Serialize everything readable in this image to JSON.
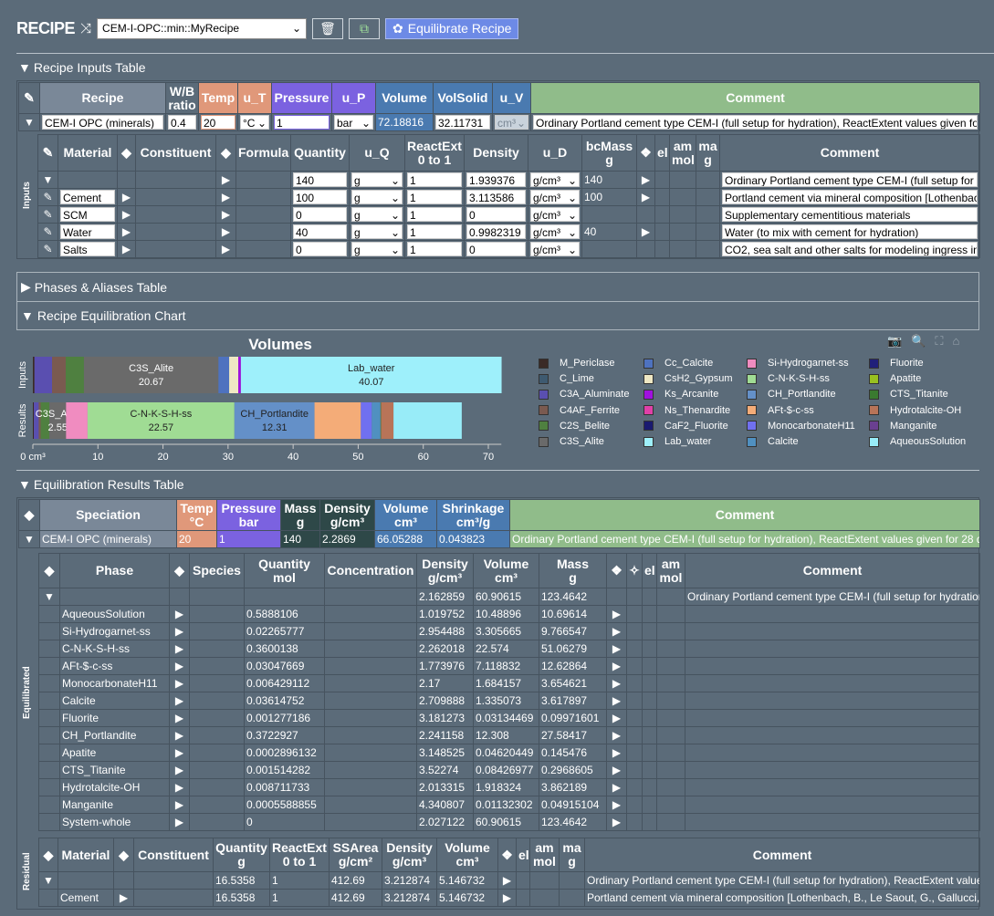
{
  "header": {
    "title": "RECIPE",
    "recipe_select": "CEM-I-OPC::min::MyRecipe",
    "equilibrate_label": "Equilibrate Recipe"
  },
  "sections": {
    "inputs": "Recipe Inputs Table",
    "phases": "Phases & Aliases Table",
    "chart": "Recipe Equilibration Chart",
    "results": "Equilibration Results Table"
  },
  "recipe_table": {
    "headers": [
      "pencil",
      "Recipe",
      "W/B\nratio",
      "Temp",
      "u_T",
      "Pressure",
      "u_P",
      "Volume",
      "VolSolid",
      "u_V",
      "Comment"
    ],
    "rows": [
      [
        "caret-down",
        "CEM-I OPC (minerals)",
        "0.4",
        "20",
        "°C",
        "1",
        "bar",
        "72.18816",
        "32.11731",
        "cm³",
        "Ordinary Portland cement type CEM-I (full setup for hydration), ReactExtent values given for"
      ]
    ]
  },
  "inputs_table": {
    "side_label": "Inputs",
    "headers": [
      "pencil",
      "Material",
      "◆",
      "Constituent",
      "◆",
      "Formula",
      "Quantity",
      "u_Q",
      "ReactExt\n0 to 1",
      "Density",
      "u_D",
      "bcMass\ng",
      "❖",
      "el",
      "am\nmol",
      "ma\ng",
      "Comment"
    ],
    "rows": [
      [
        "caret-down",
        "",
        "",
        "",
        "caret-right",
        "",
        "140",
        "g",
        "1",
        "1.939376",
        "g/cm³",
        "140",
        "caret-right",
        "",
        "",
        "",
        "Ordinary Portland cement type CEM-I (full setup for hydration)"
      ],
      [
        "pencil",
        "Cement",
        "caret-right",
        "",
        "caret-right",
        "",
        "100",
        "g",
        "1",
        "3.113586",
        "g/cm³",
        "100",
        "caret-right",
        "",
        "",
        "",
        "Portland cement via mineral composition [Lothenbach"
      ],
      [
        "pencil",
        "SCM",
        "caret-right",
        "",
        "caret-right",
        "",
        "0",
        "g",
        "1",
        "0",
        "g/cm³",
        "",
        "",
        "",
        "",
        "",
        "Supplementary cementitious materials"
      ],
      [
        "pencil",
        "Water",
        "caret-right",
        "",
        "caret-right",
        "",
        "40",
        "g",
        "1",
        "0.9982319",
        "g/cm³",
        "40",
        "caret-right",
        "",
        "",
        "",
        "Water (to mix with cement for hydration)"
      ],
      [
        "pencil",
        "Salts",
        "caret-right",
        "",
        "caret-right",
        "",
        "0",
        "g",
        "1",
        "0",
        "g/cm³",
        "",
        "",
        "",
        "",
        "",
        "CO2, sea salt and other salts for modeling ingress in"
      ]
    ]
  },
  "chart_data": {
    "type": "bar",
    "orientation": "horizontal",
    "stacked": true,
    "title": "Volumes",
    "xunit": "cm³",
    "xlim": [
      0,
      72
    ],
    "xticks": [
      0,
      10,
      20,
      30,
      40,
      50,
      60,
      70
    ],
    "xtick_labels": [
      "0 cm³",
      "10",
      "20",
      "30",
      "40",
      "50",
      "60",
      "70"
    ],
    "categories": [
      "Inputs",
      "Results"
    ],
    "legend_placement": "right",
    "bars": [
      {
        "category": "Inputs",
        "segments": [
          [
            "M_Periclase",
            0.25
          ],
          [
            "C3A_Aluminate",
            2.7
          ],
          [
            "C4AF_Ferrite",
            2.1
          ],
          [
            "C2S_Belite",
            2.8
          ],
          [
            "C3S_Alite",
            20.67
          ],
          [
            "Cc_Calcite",
            1.65
          ],
          [
            "CsH2_Gypsum",
            1.4
          ],
          [
            "Ks_Arcanite",
            0.4
          ],
          [
            "Lab_water",
            40.07
          ]
        ]
      },
      {
        "category": "Results",
        "segments": [
          [
            "M_Periclase",
            0.15
          ],
          [
            "C3A_Aluminate",
            0.75
          ],
          [
            "C4AF_Ferrite",
            0.3
          ],
          [
            "C2S_Belite",
            1.35
          ],
          [
            "C3S_Alite",
            2.55
          ],
          [
            "Si-Hydrogarnet-ss",
            3.305665
          ],
          [
            "C-N-K-S-H-ss",
            22.57
          ],
          [
            "CH_Portlandite",
            12.31
          ],
          [
            "AFt-$-c-ss",
            7.118832
          ],
          [
            "MonocarbonateH11",
            1.684157
          ],
          [
            "Calcite",
            1.335073
          ],
          [
            "CTS_Titanite",
            0.08426977
          ],
          [
            "Hydrotalcite-OH",
            1.918324
          ],
          [
            "AqueousSolution",
            10.48896
          ]
        ]
      }
    ],
    "labeled_segments": [
      "C3S_Alite",
      "Lab_water",
      "C-N-K-S-H-ss",
      "CH_Portlandite"
    ],
    "legend": [
      [
        "M_Periclase",
        "#3a2a26"
      ],
      [
        "C_Lime",
        "#3e5a70"
      ],
      [
        "C3A_Aluminate",
        "#5a4fb0"
      ],
      [
        "C4AF_Ferrite",
        "#7a5a50"
      ],
      [
        "C2S_Belite",
        "#4f8040"
      ],
      [
        "C3S_Alite",
        "#6a6a6a"
      ],
      [
        "Cc_Calcite",
        "#4e72bf"
      ],
      [
        "CsH2_Gypsum",
        "#efe8c4"
      ],
      [
        "Ks_Arcanite",
        "#a010e0"
      ],
      [
        "Ns_Thenardite",
        "#e040a8"
      ],
      [
        "CaF2_Fluorite",
        "#1a1a70"
      ],
      [
        "Lab_water",
        "#9ef0fb"
      ],
      [
        "Si-Hydrogarnet-ss",
        "#f08cc0"
      ],
      [
        "C-N-K-S-H-ss",
        "#a0dc94"
      ],
      [
        "CH_Portlandite",
        "#6490c8"
      ],
      [
        "AFt-$-c-ss",
        "#f4ac78"
      ],
      [
        "MonocarbonateH11",
        "#7070f0"
      ],
      [
        "Calcite",
        "#5090c0"
      ],
      [
        "Fluorite",
        "#20207a"
      ],
      [
        "Apatite",
        "#98c020"
      ],
      [
        "CTS_Titanite",
        "#3a7a30"
      ],
      [
        "Hydrotalcite-OH",
        "#b87458"
      ],
      [
        "Manganite",
        "#6a4090"
      ],
      [
        "AqueousSolution",
        "#98ecf8"
      ]
    ]
  },
  "speciation_table": {
    "headers": [
      "◆",
      "Speciation",
      "Temp\n°C",
      "Pressure\nbar",
      "Mass\ng",
      "Density\ng/cm³",
      "Volume\ncm³",
      "Shrinkage\ncm³/g",
      "Comment"
    ],
    "rows": [
      [
        "caret-down",
        "CEM-I OPC (minerals)",
        "20",
        "1",
        "140",
        "2.2869",
        "66.05288",
        "0.043823",
        "Ordinary Portland cement type CEM-I (full setup for hydration), ReactExtent values given for 28 d"
      ]
    ]
  },
  "equilibrated_table": {
    "side_label": "Equilibrated",
    "headers": [
      "◆",
      "Phase",
      "◆",
      "Species",
      "Quantity\nmol",
      "Concentration",
      "Density\ng/cm³",
      "Volume\ncm³",
      "Mass\ng",
      "❖",
      "✧",
      "el",
      "am\nmol",
      "Comment"
    ],
    "rows": [
      [
        "caret-down",
        "",
        "",
        "",
        "",
        "",
        "2.162859",
        "60.90615",
        "123.4642",
        "",
        "",
        "",
        "",
        "Ordinary Portland cement type CEM-I (full setup for hydration)"
      ],
      [
        "",
        "AqueousSolution",
        "caret-right",
        "",
        "0.5888106",
        "",
        "1.019752",
        "10.48896",
        "10.69614",
        "caret-right",
        "",
        "",
        "",
        ""
      ],
      [
        "",
        "Si-Hydrogarnet-ss",
        "caret-right",
        "",
        "0.02265777",
        "",
        "2.954488",
        "3.305665",
        "9.766547",
        "caret-right",
        "",
        "",
        "",
        ""
      ],
      [
        "",
        "C-N-K-S-H-ss",
        "caret-right",
        "",
        "0.3600138",
        "",
        "2.262018",
        "22.574",
        "51.06279",
        "caret-right",
        "",
        "",
        "",
        ""
      ],
      [
        "",
        "AFt-$-c-ss",
        "caret-right",
        "",
        "0.03047669",
        "",
        "1.773976",
        "7.118832",
        "12.62864",
        "caret-right",
        "",
        "",
        "",
        ""
      ],
      [
        "",
        "MonocarbonateH11",
        "caret-right",
        "",
        "0.006429112",
        "",
        "2.17",
        "1.684157",
        "3.654621",
        "caret-right",
        "",
        "",
        "",
        ""
      ],
      [
        "",
        "Calcite",
        "caret-right",
        "",
        "0.03614752",
        "",
        "2.709888",
        "1.335073",
        "3.617897",
        "caret-right",
        "",
        "",
        "",
        ""
      ],
      [
        "",
        "Fluorite",
        "caret-right",
        "",
        "0.001277186",
        "",
        "3.181273",
        "0.03134469",
        "0.09971601",
        "caret-right",
        "",
        "",
        "",
        ""
      ],
      [
        "",
        "CH_Portlandite",
        "caret-right",
        "",
        "0.3722927",
        "",
        "2.241158",
        "12.308",
        "27.58417",
        "caret-right",
        "",
        "",
        "",
        ""
      ],
      [
        "",
        "Apatite",
        "caret-right",
        "",
        "0.0002896132",
        "",
        "3.148525",
        "0.04620449",
        "0.145476",
        "caret-right",
        "",
        "",
        "",
        ""
      ],
      [
        "",
        "CTS_Titanite",
        "caret-right",
        "",
        "0.001514282",
        "",
        "3.52274",
        "0.08426977",
        "0.2968605",
        "caret-right",
        "",
        "",
        "",
        ""
      ],
      [
        "",
        "Hydrotalcite-OH",
        "caret-right",
        "",
        "0.008711733",
        "",
        "2.013315",
        "1.918324",
        "3.862189",
        "caret-right",
        "",
        "",
        "",
        ""
      ],
      [
        "",
        "Manganite",
        "caret-right",
        "",
        "0.0005588855",
        "",
        "4.340807",
        "0.01132302",
        "0.04915104",
        "caret-right",
        "",
        "",
        "",
        ""
      ],
      [
        "",
        "System-whole",
        "caret-right",
        "",
        "0",
        "",
        "2.027122",
        "60.90615",
        "123.4642",
        "caret-right",
        "",
        "",
        "",
        ""
      ]
    ]
  },
  "residual_table": {
    "side_label": "Residual",
    "headers": [
      "◆",
      "Material",
      "◆",
      "Constituent",
      "Quantity\ng",
      "ReactExt\n0 to 1",
      "SSArea\ng/cm²",
      "Density\ng/cm³",
      "Volume\ncm³",
      "❖",
      "el",
      "am\nmol",
      "ma\ng",
      "Comment"
    ],
    "rows": [
      [
        "caret-down",
        "",
        "",
        "",
        "16.5358",
        "1",
        "412.69",
        "3.212874",
        "5.146732",
        "caret-right",
        "",
        "",
        "",
        "Ordinary Portland cement type CEM-I (full setup for hydration), ReactExtent values"
      ],
      [
        "",
        "Cement",
        "caret-right",
        "",
        "16.5358",
        "1",
        "412.69",
        "3.212874",
        "5.146732",
        "caret-right",
        "",
        "",
        "",
        "Portland cement via mineral composition [Lothenbach, B., Le Saout, G., Gallucci,"
      ]
    ]
  }
}
